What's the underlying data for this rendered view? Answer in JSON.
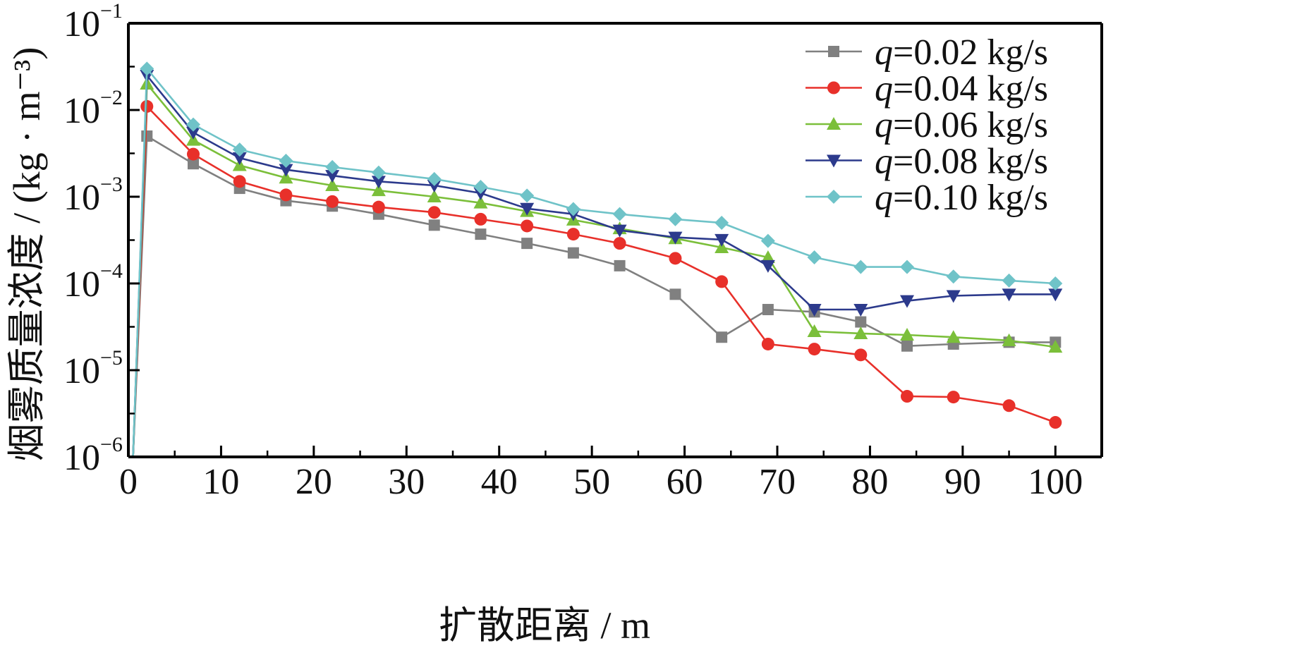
{
  "chart_data": {
    "type": "line",
    "title": "",
    "xlabel": "扩散距离 / m",
    "ylabel": "烟雾质量浓度 / (kg · m⁻³)",
    "xlim": [
      0,
      105
    ],
    "ylim": [
      1e-06,
      0.1
    ],
    "yscale": "log",
    "grid": false,
    "legend_position": "top-right",
    "x_ticks": [
      0,
      10,
      20,
      30,
      40,
      50,
      60,
      70,
      80,
      90,
      100
    ],
    "x_tick_labels": [
      "0",
      "10",
      "20",
      "30",
      "40",
      "50",
      "60",
      "70",
      "80",
      "90",
      "100"
    ],
    "y_ticks": [
      1e-06,
      1e-05,
      0.0001,
      0.001,
      0.01,
      0.1
    ],
    "y_tick_labels": [
      {
        "base": "10",
        "exp": "−6"
      },
      {
        "base": "10",
        "exp": "−5"
      },
      {
        "base": "10",
        "exp": "−4"
      },
      {
        "base": "10",
        "exp": "−3"
      },
      {
        "base": "10",
        "exp": "−2"
      },
      {
        "base": "10",
        "exp": "−1"
      }
    ],
    "x": [
      0.5,
      2,
      7,
      12,
      17,
      22,
      27,
      33,
      38,
      43,
      48,
      53,
      59,
      64,
      69,
      74,
      79,
      84,
      89,
      95,
      100
    ],
    "series": [
      {
        "name": "q=0.02 kg/s",
        "name_var": "q",
        "name_rest": "=0.02 kg/s",
        "color": "#808080",
        "marker": "square",
        "values": [
          1e-06,
          0.005,
          0.0024,
          0.00125,
          0.0009,
          0.00078,
          0.00063,
          0.00047,
          0.00037,
          0.00029,
          0.000225,
          0.00016,
          7.5e-05,
          2.4e-05,
          5e-05,
          4.7e-05,
          3.6e-05,
          1.9e-05,
          2e-05,
          2.1e-05,
          2.1e-05
        ]
      },
      {
        "name": "q=0.04 kg/s",
        "name_var": "q",
        "name_rest": "=0.04 kg/s",
        "color": "#e8302a",
        "marker": "circle",
        "values": [
          1e-06,
          0.011,
          0.0031,
          0.0015,
          0.00105,
          0.00088,
          0.00076,
          0.00066,
          0.00055,
          0.00046,
          0.00037,
          0.00029,
          0.000195,
          0.000105,
          2e-05,
          1.75e-05,
          1.5e-05,
          5e-06,
          4.9e-06,
          3.9e-06,
          2.5e-06
        ]
      },
      {
        "name": "q=0.06 kg/s",
        "name_var": "q",
        "name_rest": "=0.06 kg/s",
        "color": "#7bbf3a",
        "marker": "triangle-up",
        "values": [
          1e-06,
          0.02,
          0.0045,
          0.0023,
          0.00165,
          0.00135,
          0.00118,
          0.001,
          0.00085,
          0.00068,
          0.00054,
          0.00043,
          0.00033,
          0.00026,
          0.0002,
          2.8e-05,
          2.65e-05,
          2.55e-05,
          2.4e-05,
          2.2e-05,
          1.85e-05
        ]
      },
      {
        "name": "q=0.08 kg/s",
        "name_var": "q",
        "name_rest": "=0.08 kg/s",
        "color": "#2c3a8c",
        "marker": "triangle-down",
        "values": [
          1e-06,
          0.025,
          0.0055,
          0.0028,
          0.00205,
          0.00175,
          0.0015,
          0.00135,
          0.0011,
          0.00073,
          0.00063,
          0.00041,
          0.00034,
          0.00032,
          0.00016,
          5e-05,
          5e-05,
          6.3e-05,
          7.2e-05,
          7.5e-05,
          7.5e-05
        ]
      },
      {
        "name": "q=0.10 kg/s",
        "name_var": "q",
        "name_rest": "=0.10 kg/s",
        "color": "#6fc3c8",
        "marker": "diamond",
        "values": [
          1e-06,
          0.03,
          0.0068,
          0.0035,
          0.0026,
          0.0022,
          0.0019,
          0.0016,
          0.0013,
          0.00103,
          0.00072,
          0.00063,
          0.00055,
          0.0005,
          0.00031,
          0.0002,
          0.000155,
          0.000155,
          0.00012,
          0.000108,
          0.0001
        ]
      }
    ]
  }
}
